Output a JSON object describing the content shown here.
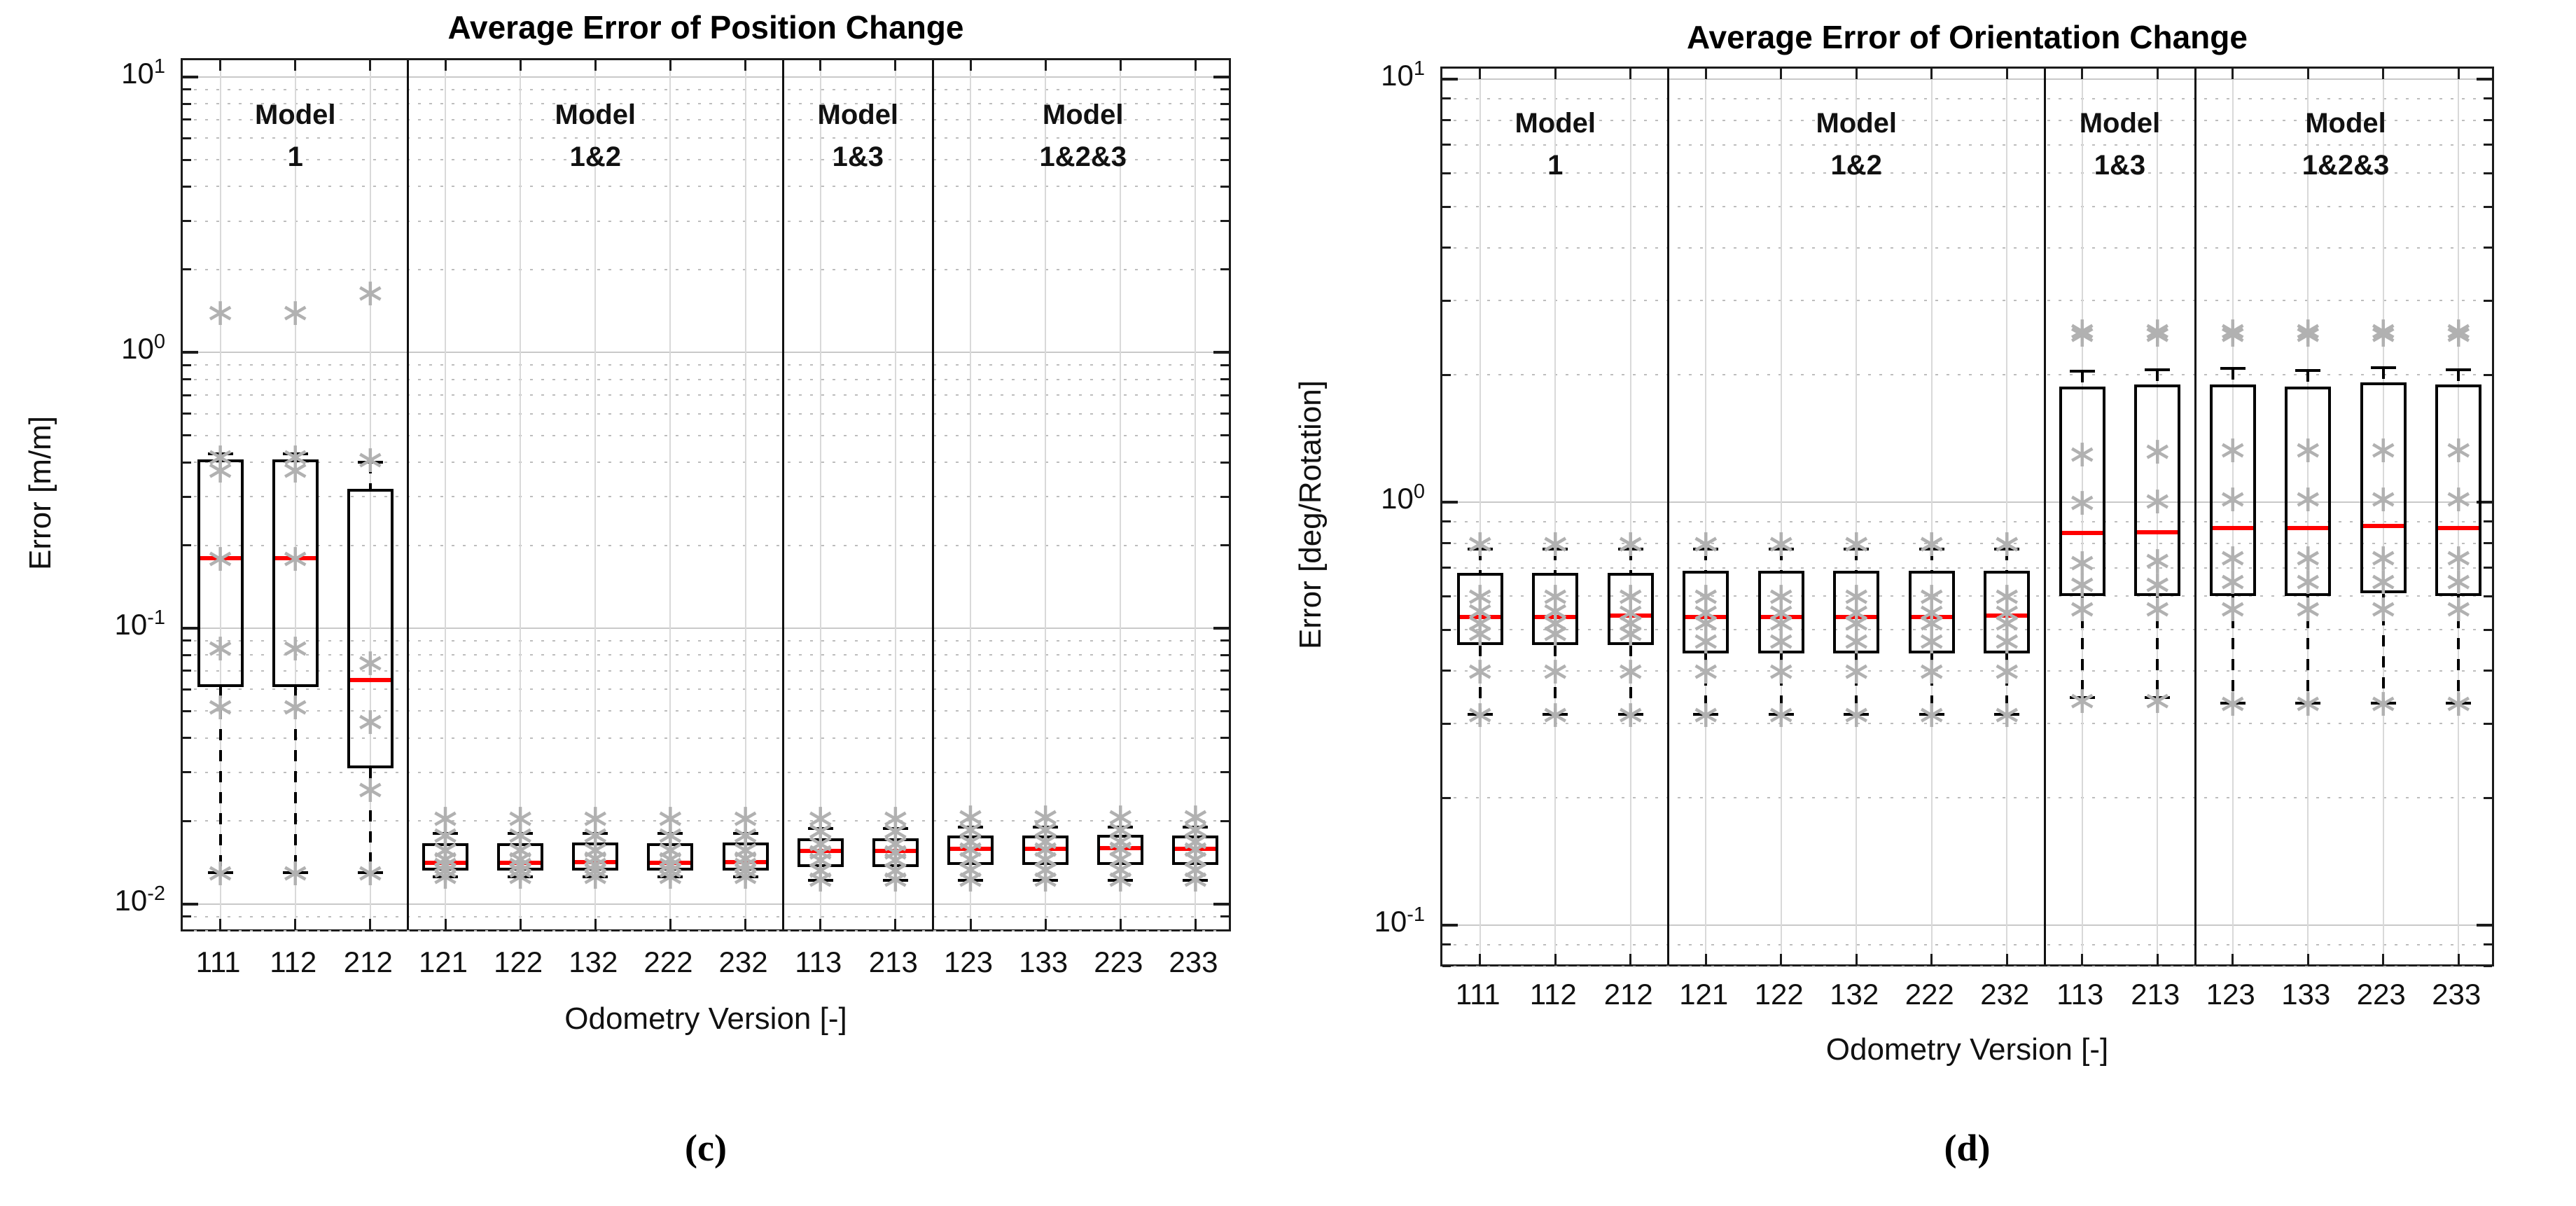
{
  "captions": {
    "left": "(c)",
    "right": "(d)"
  },
  "colors": {
    "median_line": "#ff0000",
    "box_edge": "#000000",
    "data_point": "#b1b1b1",
    "grid_major": "#c9c9c9",
    "grid_minor": "#bdbdbd",
    "category_gridline": "#d9d9d9",
    "group_divider": "#111111",
    "axis": "#1c1c1c",
    "background": "#ffffff"
  },
  "point_marker": "∗",
  "chart_data": [
    {
      "type": "boxplot",
      "title": "Average Error of Position Change",
      "xlabel": "Odometry Version [-]",
      "ylabel": "Error [m/m]",
      "yscale": "log",
      "ylim": [
        0.0078,
        11.5
      ],
      "ytick_exponents": [
        -2,
        -1,
        0,
        1
      ],
      "grid": "log major solid, minor dotted",
      "legend": "none",
      "categories": [
        "111",
        "112",
        "212",
        "121",
        "122",
        "132",
        "222",
        "232",
        "113",
        "213",
        "123",
        "133",
        "223",
        "233"
      ],
      "groups": [
        {
          "title": "Model",
          "subtitle": "1",
          "from": 0,
          "to": 2
        },
        {
          "title": "Model",
          "subtitle": "1&2",
          "from": 3,
          "to": 7
        },
        {
          "title": "Model",
          "subtitle": "1&3",
          "from": 8,
          "to": 9
        },
        {
          "title": "Model",
          "subtitle": "1&2&3",
          "from": 10,
          "to": 13
        }
      ],
      "dividers_after": [
        2,
        7,
        9
      ],
      "boxes": [
        {
          "category": "111",
          "whisker_low": 0.013,
          "q1": 0.061,
          "median": 0.18,
          "q3": 0.41,
          "whisker_high": 0.43,
          "outliers": [
            1.4
          ],
          "points": [
            0.42,
            0.375,
            0.18,
            0.085,
            0.052,
            0.013
          ]
        },
        {
          "category": "112",
          "whisker_low": 0.013,
          "q1": 0.061,
          "median": 0.18,
          "q3": 0.41,
          "whisker_high": 0.43,
          "outliers": [
            1.4
          ],
          "points": [
            0.42,
            0.375,
            0.18,
            0.085,
            0.052,
            0.013
          ]
        },
        {
          "category": "212",
          "whisker_low": 0.013,
          "q1": 0.031,
          "median": 0.065,
          "q3": 0.32,
          "whisker_high": 0.4,
          "outliers": [
            1.65
          ],
          "points": [
            0.41,
            0.075,
            0.046,
            0.026,
            0.013
          ]
        },
        {
          "category": "121",
          "whisker_low": 0.0125,
          "q1": 0.0132,
          "median": 0.0141,
          "q3": 0.0166,
          "whisker_high": 0.018,
          "outliers": [
            0.0205
          ],
          "points": [
            0.0178,
            0.0157,
            0.0146,
            0.0139,
            0.0133,
            0.0126
          ]
        },
        {
          "category": "122",
          "whisker_low": 0.0125,
          "q1": 0.0132,
          "median": 0.0141,
          "q3": 0.0166,
          "whisker_high": 0.018,
          "outliers": [
            0.0205
          ],
          "points": [
            0.0178,
            0.0157,
            0.0146,
            0.0139,
            0.0133,
            0.0126
          ]
        },
        {
          "category": "132",
          "whisker_low": 0.0125,
          "q1": 0.0132,
          "median": 0.0142,
          "q3": 0.0167,
          "whisker_high": 0.018,
          "outliers": [
            0.0205
          ],
          "points": [
            0.0178,
            0.0157,
            0.0147,
            0.0139,
            0.0133,
            0.0126
          ]
        },
        {
          "category": "222",
          "whisker_low": 0.0125,
          "q1": 0.0132,
          "median": 0.0141,
          "q3": 0.0166,
          "whisker_high": 0.018,
          "outliers": [
            0.0205
          ],
          "points": [
            0.0178,
            0.0157,
            0.0146,
            0.0139,
            0.0133,
            0.0126
          ]
        },
        {
          "category": "232",
          "whisker_low": 0.0125,
          "q1": 0.0132,
          "median": 0.0142,
          "q3": 0.0167,
          "whisker_high": 0.018,
          "outliers": [
            0.0205
          ],
          "points": [
            0.0178,
            0.0157,
            0.0147,
            0.0139,
            0.0133,
            0.0126
          ]
        },
        {
          "category": "113",
          "whisker_low": 0.0122,
          "q1": 0.0136,
          "median": 0.0156,
          "q3": 0.0173,
          "whisker_high": 0.0188,
          "outliers": [
            0.0205
          ],
          "points": [
            0.0184,
            0.0166,
            0.0155,
            0.0145,
            0.0133,
            0.0123
          ]
        },
        {
          "category": "213",
          "whisker_low": 0.0122,
          "q1": 0.0136,
          "median": 0.0156,
          "q3": 0.0173,
          "whisker_high": 0.0188,
          "outliers": [
            0.0205
          ],
          "points": [
            0.0184,
            0.0166,
            0.0155,
            0.0145,
            0.0133,
            0.0123
          ]
        },
        {
          "category": "123",
          "whisker_low": 0.0122,
          "q1": 0.0138,
          "median": 0.0158,
          "q3": 0.0177,
          "whisker_high": 0.019,
          "outliers": [
            0.0207
          ],
          "points": [
            0.0187,
            0.0169,
            0.0158,
            0.0146,
            0.0134,
            0.0123
          ]
        },
        {
          "category": "133",
          "whisker_low": 0.0122,
          "q1": 0.0138,
          "median": 0.0158,
          "q3": 0.0177,
          "whisker_high": 0.019,
          "outliers": [
            0.0207
          ],
          "points": [
            0.0187,
            0.0169,
            0.0158,
            0.0146,
            0.0134,
            0.0123
          ]
        },
        {
          "category": "223",
          "whisker_low": 0.0122,
          "q1": 0.0138,
          "median": 0.0159,
          "q3": 0.0178,
          "whisker_high": 0.019,
          "outliers": [
            0.0207
          ],
          "points": [
            0.0187,
            0.0169,
            0.0159,
            0.0146,
            0.0134,
            0.0123
          ]
        },
        {
          "category": "233",
          "whisker_low": 0.0122,
          "q1": 0.0138,
          "median": 0.0158,
          "q3": 0.0177,
          "whisker_high": 0.019,
          "outliers": [
            0.0207
          ],
          "points": [
            0.0187,
            0.0169,
            0.0158,
            0.0146,
            0.0134,
            0.0123
          ]
        }
      ]
    },
    {
      "type": "boxplot",
      "title": "Average Error of Orientation Change",
      "xlabel": "Odometry Version [-]",
      "ylabel": "Error [deg/Rotation]",
      "yscale": "log",
      "ylim": [
        0.079,
        10.6
      ],
      "ytick_exponents": [
        -1,
        0,
        1
      ],
      "grid": "log major solid, minor dotted",
      "legend": "none",
      "categories": [
        "111",
        "112",
        "212",
        "121",
        "122",
        "132",
        "222",
        "232",
        "113",
        "213",
        "123",
        "133",
        "223",
        "233"
      ],
      "groups": [
        {
          "title": "Model",
          "subtitle": "1",
          "from": 0,
          "to": 2
        },
        {
          "title": "Model",
          "subtitle": "1&2",
          "from": 3,
          "to": 7
        },
        {
          "title": "Model",
          "subtitle": "1&3",
          "from": 8,
          "to": 9
        },
        {
          "title": "Model",
          "subtitle": "1&2&3",
          "from": 10,
          "to": 13
        }
      ],
      "dividers_after": [
        2,
        7,
        9
      ],
      "boxes": [
        {
          "category": "111",
          "whisker_low": 0.315,
          "q1": 0.46,
          "median": 0.535,
          "q3": 0.68,
          "whisker_high": 0.775,
          "outliers": [
            0.8
          ],
          "points": [
            0.8,
            0.6,
            0.555,
            0.52,
            0.49,
            0.4,
            0.315
          ]
        },
        {
          "category": "112",
          "whisker_low": 0.315,
          "q1": 0.46,
          "median": 0.535,
          "q3": 0.68,
          "whisker_high": 0.775,
          "outliers": [
            0.8
          ],
          "points": [
            0.8,
            0.6,
            0.555,
            0.52,
            0.49,
            0.4,
            0.315
          ]
        },
        {
          "category": "212",
          "whisker_low": 0.315,
          "q1": 0.46,
          "median": 0.54,
          "q3": 0.68,
          "whisker_high": 0.775,
          "outliers": [
            0.8
          ],
          "points": [
            0.8,
            0.6,
            0.55,
            0.52,
            0.49,
            0.4,
            0.315
          ]
        },
        {
          "category": "121",
          "whisker_low": 0.315,
          "q1": 0.44,
          "median": 0.535,
          "q3": 0.69,
          "whisker_high": 0.775,
          "outliers": [
            0.8
          ],
          "points": [
            0.8,
            0.6,
            0.55,
            0.52,
            0.47,
            0.4,
            0.315
          ]
        },
        {
          "category": "122",
          "whisker_low": 0.315,
          "q1": 0.44,
          "median": 0.535,
          "q3": 0.69,
          "whisker_high": 0.775,
          "outliers": [
            0.8
          ],
          "points": [
            0.8,
            0.6,
            0.55,
            0.52,
            0.47,
            0.4,
            0.315
          ]
        },
        {
          "category": "132",
          "whisker_low": 0.315,
          "q1": 0.44,
          "median": 0.535,
          "q3": 0.69,
          "whisker_high": 0.775,
          "outliers": [
            0.8
          ],
          "points": [
            0.8,
            0.6,
            0.55,
            0.52,
            0.47,
            0.4,
            0.315
          ]
        },
        {
          "category": "222",
          "whisker_low": 0.315,
          "q1": 0.44,
          "median": 0.535,
          "q3": 0.69,
          "whisker_high": 0.775,
          "outliers": [
            0.8
          ],
          "points": [
            0.8,
            0.6,
            0.55,
            0.52,
            0.47,
            0.4,
            0.315
          ]
        },
        {
          "category": "232",
          "whisker_low": 0.315,
          "q1": 0.44,
          "median": 0.54,
          "q3": 0.69,
          "whisker_high": 0.775,
          "outliers": [
            0.8
          ],
          "points": [
            0.8,
            0.6,
            0.55,
            0.52,
            0.47,
            0.4,
            0.315
          ]
        },
        {
          "category": "113",
          "whisker_low": 0.345,
          "q1": 0.6,
          "median": 0.845,
          "q3": 1.88,
          "whisker_high": 2.04,
          "outliers": [
            2.55
          ],
          "points": [
            2.5,
            1.3,
            1.0,
            0.72,
            0.64,
            0.56,
            0.34
          ]
        },
        {
          "category": "213",
          "whisker_low": 0.345,
          "q1": 0.6,
          "median": 0.85,
          "q3": 1.9,
          "whisker_high": 2.06,
          "outliers": [
            2.55
          ],
          "points": [
            2.5,
            1.32,
            1.01,
            0.73,
            0.64,
            0.56,
            0.34
          ]
        },
        {
          "category": "123",
          "whisker_low": 0.335,
          "q1": 0.6,
          "median": 0.87,
          "q3": 1.9,
          "whisker_high": 2.07,
          "outliers": [
            2.55
          ],
          "points": [
            2.5,
            1.33,
            1.02,
            0.74,
            0.65,
            0.56,
            0.335
          ]
        },
        {
          "category": "133",
          "whisker_low": 0.335,
          "q1": 0.6,
          "median": 0.87,
          "q3": 1.88,
          "whisker_high": 2.05,
          "outliers": [
            2.55
          ],
          "points": [
            2.5,
            1.33,
            1.02,
            0.74,
            0.65,
            0.56,
            0.335
          ]
        },
        {
          "category": "223",
          "whisker_low": 0.335,
          "q1": 0.61,
          "median": 0.88,
          "q3": 1.92,
          "whisker_high": 2.08,
          "outliers": [
            2.55
          ],
          "points": [
            2.5,
            1.33,
            1.02,
            0.74,
            0.65,
            0.56,
            0.335
          ]
        },
        {
          "category": "233",
          "whisker_low": 0.335,
          "q1": 0.6,
          "median": 0.87,
          "q3": 1.9,
          "whisker_high": 2.06,
          "outliers": [
            2.55
          ],
          "points": [
            2.5,
            1.33,
            1.02,
            0.74,
            0.65,
            0.56,
            0.335
          ]
        }
      ]
    }
  ]
}
